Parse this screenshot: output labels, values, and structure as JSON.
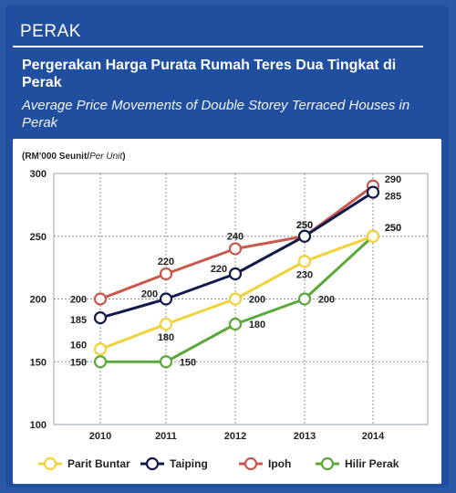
{
  "header": {
    "region": "PERAK",
    "title_ms": "Pergerakan Harga Purata Rumah Teres Dua Tingkat di Perak",
    "title_en": "Average Price Movements of Double Storey Terraced Houses in Perak"
  },
  "chart_data": {
    "type": "line",
    "ylabel_ms": "(RM'000 Seunit/",
    "ylabel_en": "Per Unit",
    "ylabel_close": ")",
    "categories": [
      "2010",
      "2011",
      "2012",
      "2013",
      "2014"
    ],
    "ylim": [
      100,
      300
    ],
    "yticks": [
      100,
      150,
      200,
      250,
      300
    ],
    "grid": true,
    "legend_position": "bottom",
    "series": [
      {
        "name": "Parit Buntar",
        "color": "#f2d23a",
        "values": [
          160,
          180,
          200,
          230,
          250
        ],
        "labels": [
          "160",
          "180",
          "200",
          "230",
          "250"
        ]
      },
      {
        "name": "Taiping",
        "color": "#111a4a",
        "values": [
          185,
          200,
          220,
          250,
          285
        ],
        "labels": [
          "185",
          "200",
          "220",
          "250",
          "285"
        ]
      },
      {
        "name": "Ipoh",
        "color": "#c8584c",
        "values": [
          200,
          220,
          240,
          250,
          290
        ],
        "labels": [
          "200",
          "220",
          "240",
          "250",
          "290"
        ]
      },
      {
        "name": "Hilir Perak",
        "color": "#5aa83a",
        "values": [
          150,
          150,
          180,
          200,
          250
        ],
        "labels": [
          "150",
          "150",
          "180",
          "200",
          "250"
        ]
      }
    ]
  }
}
